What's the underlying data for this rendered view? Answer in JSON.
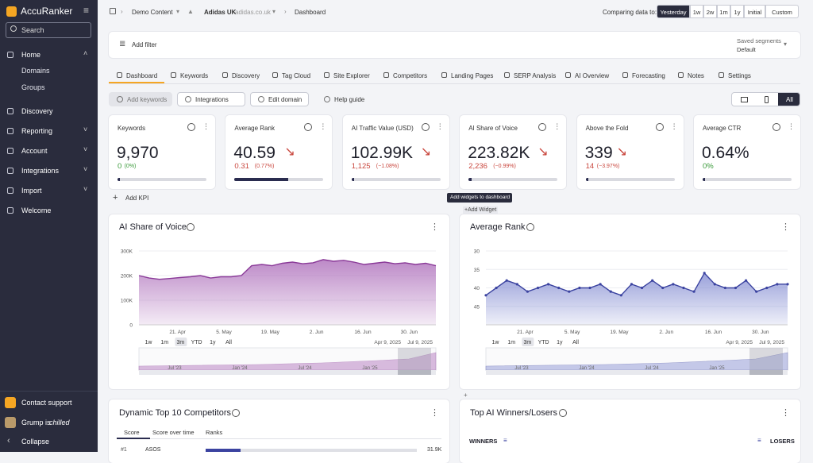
{
  "sidebar": {
    "brand": "AccuRanker",
    "search": "Search",
    "nav": [
      {
        "label": "Home",
        "children": [
          "Domains",
          "Groups"
        ],
        "has_submenu": true
      },
      {
        "label": "Discovery",
        "has_submenu": false
      },
      {
        "label": "Reporting",
        "has_submenu": true
      },
      {
        "label": "Account",
        "has_submenu": true
      },
      {
        "label": "Integrations",
        "has_submenu": true
      },
      {
        "label": "Import",
        "has_submenu": true
      },
      {
        "label": "Welcome",
        "has_submenu": false
      }
    ],
    "footer": {
      "support": "Contact support",
      "user": "Grump is",
      "status": "chilled",
      "collapse": "Collapse"
    }
  },
  "header": {
    "breadcrumb": [
      "Demo Content",
      "Adidas UK",
      "adidas.co.uk",
      "Dashboard"
    ],
    "compare_label": "Comparing data to:",
    "compare_options": [
      "Yesterday",
      "1w",
      "2w",
      "1m",
      "1y",
      "Initial",
      "Custom"
    ],
    "compare_active": 0
  },
  "filter_bar": {
    "add_filter": "Add filter",
    "segments_label": "Saved segments",
    "segment": "Default"
  },
  "tabs": {
    "items": [
      "Dashboard",
      "Keywords",
      "Discovery",
      "Tag Cloud",
      "Site Explorer",
      "Competitors",
      "Landing Pages",
      "SERP Analysis",
      "AI Overview",
      "Forecasting",
      "Notes",
      "Settings"
    ],
    "active": 0
  },
  "toolbar": {
    "buttons": [
      "Add keywords",
      "Integrations",
      "Edit domain",
      "Help guide"
    ],
    "device_all": "All"
  },
  "kpis": [
    {
      "title": "Keywords",
      "value": "9,970",
      "change": "0",
      "change_pct": "(0%)",
      "direction": "up",
      "progress": 3
    },
    {
      "title": "Average Rank",
      "value": "40.59",
      "change": "0.31",
      "change_pct": "(0.77%)",
      "direction": "down",
      "progress": 60
    },
    {
      "title": "AI Traffic Value (USD)",
      "value": "102.99K",
      "change": "1,125",
      "change_pct": "(−1.08%)",
      "direction": "down",
      "progress": 3
    },
    {
      "title": "AI Share of Voice",
      "value": "223.82K",
      "change": "2,236",
      "change_pct": "(−0.99%)",
      "direction": "down",
      "progress": 3
    },
    {
      "title": "Above the Fold",
      "value": "339",
      "change": "14",
      "change_pct": "(−3.97%)",
      "direction": "down",
      "progress": 3
    },
    {
      "title": "Average CTR",
      "value": "0.64%",
      "change": "0%",
      "direction": "up",
      "progress": 3
    }
  ],
  "add_kpi": "Add KPI",
  "tooltip": "Add widgets to dashboard",
  "add_widget": "+Add Widget",
  "widgets": [
    {
      "title": "AI Share of Voice",
      "type": "area",
      "color": "#8a3a98",
      "fill": "#b57cc1",
      "reversed": false,
      "ylim": [
        0,
        300000
      ],
      "yticks": [
        {
          "value": 300000,
          "label": "300K"
        },
        {
          "value": 200000,
          "label": "200K"
        },
        {
          "value": 100000,
          "label": "100K"
        },
        0
      ],
      "xticks": [
        "21. Apr",
        "5. May",
        "19. May",
        "2. Jun",
        "16. Jun",
        "30. Jun"
      ],
      "values": [
        200000,
        190000,
        185000,
        188000,
        192000,
        195000,
        200000,
        190000,
        195000,
        195000,
        200000,
        240000,
        245000,
        240000,
        250000,
        255000,
        248000,
        252000,
        265000,
        258000,
        262000,
        255000,
        245000,
        250000,
        255000,
        248000,
        252000,
        245000,
        250000,
        240000
      ],
      "range_buttons": [
        "1w",
        "1m",
        "3m",
        "YTD",
        "1y",
        "All"
      ],
      "range_active": 2,
      "range_from": "Apr 9, 2025",
      "range_to": "Jul 9, 2025",
      "navigator_labels": [
        "Jul '23",
        "Jan '24",
        "Jul '24",
        "Jan '25"
      ]
    },
    {
      "title": "Average Rank",
      "type": "area",
      "color": "#3b43a0",
      "fill": "#8f97d6",
      "reversed": true,
      "ylim": [
        30,
        50
      ],
      "yticks": [
        30,
        35,
        40,
        45
      ],
      "xticks": [
        "21. Apr",
        "5. May",
        "19. May",
        "2. Jun",
        "16. Jun",
        "30. Jun"
      ],
      "values": [
        42,
        40,
        38,
        39,
        41,
        40,
        39,
        40,
        41,
        40,
        40,
        39,
        41,
        42,
        39,
        40,
        38,
        40,
        39,
        40,
        41,
        36,
        39,
        40,
        40,
        38,
        41,
        40,
        39,
        39
      ],
      "range_buttons": [
        "1w",
        "1m",
        "3m",
        "YTD",
        "1y",
        "All"
      ],
      "range_active": 2,
      "range_from": "Apr 9, 2025",
      "range_to": "Jul 9, 2025",
      "navigator_labels": [
        "Jul '23",
        "Jan '24",
        "Jul '24",
        "Jan '25"
      ]
    }
  ],
  "bottom": {
    "competitors": {
      "title": "Dynamic Top 10 Competitors",
      "tabs": [
        "Score",
        "Score over time",
        "Ranks"
      ],
      "rows": [
        {
          "rank": "#1",
          "name": "ASOS",
          "score": "31.9K"
        }
      ]
    },
    "winners": {
      "title": "Top AI Winners/Losers",
      "winners": "WINNERS",
      "losers": "LOSERS"
    }
  }
}
